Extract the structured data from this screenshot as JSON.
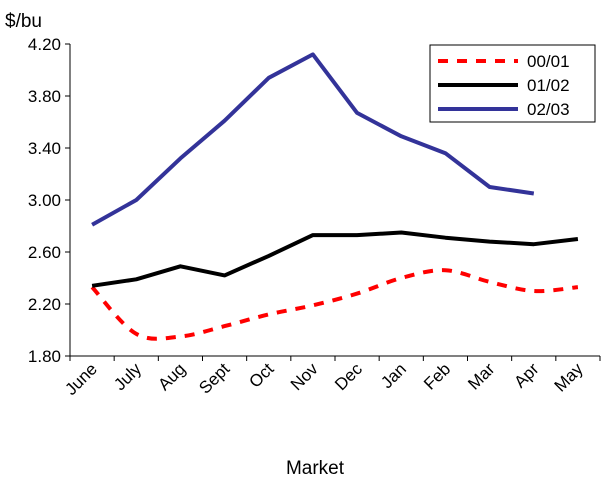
{
  "chart_data": {
    "type": "line",
    "ylabel": "$/bu",
    "xlabel": "Market",
    "ylim": [
      1.8,
      4.2
    ],
    "yticks": [
      "1.80",
      "2.20",
      "2.60",
      "3.00",
      "3.40",
      "3.80",
      "4.20"
    ],
    "categories": [
      "June",
      "July",
      "Aug",
      "Sept",
      "Oct",
      "Nov",
      "Dec",
      "Jan",
      "Feb",
      "Mar",
      "Apr",
      "May"
    ],
    "grid": false,
    "legend_position": "top-right",
    "series": [
      {
        "name": "00/01",
        "color": "#ff0000",
        "style": "dashed",
        "smooth": true,
        "values": [
          2.33,
          1.97,
          1.95,
          2.03,
          2.12,
          2.19,
          2.28,
          2.4,
          2.46,
          2.37,
          2.3,
          2.33
        ]
      },
      {
        "name": "01/02",
        "color": "#000000",
        "style": "solid",
        "smooth": false,
        "values": [
          2.34,
          2.39,
          2.49,
          2.42,
          2.57,
          2.73,
          2.73,
          2.75,
          2.71,
          2.68,
          2.66,
          2.7
        ]
      },
      {
        "name": "02/03",
        "color": "#333399",
        "style": "solid",
        "smooth": false,
        "values": [
          2.81,
          3.0,
          3.32,
          3.61,
          3.94,
          4.12,
          3.67,
          3.49,
          3.36,
          3.1,
          3.05,
          null
        ]
      }
    ]
  }
}
